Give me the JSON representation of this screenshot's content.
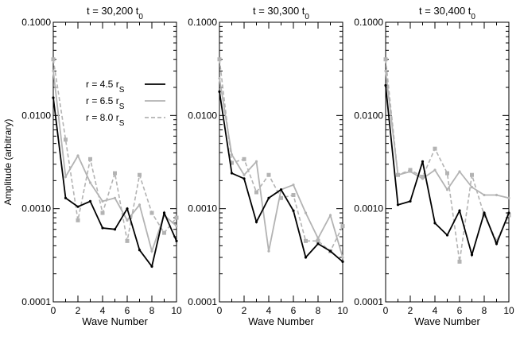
{
  "chart_data": {
    "type": "line",
    "ylabel": "Amplitude (arbitrary)",
    "xlabel": "Wave Number",
    "yscale": "log",
    "ylim": [
      0.0001,
      0.1
    ],
    "xlim": [
      0,
      10
    ],
    "xticks": [
      "0",
      "2",
      "4",
      "6",
      "8",
      "10"
    ],
    "yticks": [
      "0.1000",
      "0.0100",
      "0.0010",
      "0.0001"
    ],
    "legend": [
      {
        "label": "r = 4.5 r",
        "sub": "S",
        "series": 0
      },
      {
        "label": "r = 6.5 r",
        "sub": "S",
        "series": 1
      },
      {
        "label": "r = 8.0 r",
        "sub": "S",
        "series": 2
      }
    ],
    "panels": [
      {
        "title": "t = 30,200 t",
        "title_sub": "0",
        "series": [
          {
            "name": "r = 4.5 rS",
            "color": "#000000",
            "style": "solid",
            "values": [
              0.0155,
              0.0013,
              0.00105,
              0.0012,
              0.00062,
              0.0006,
              0.001,
              0.00036,
              0.00024,
              0.0009,
              0.00045
            ]
          },
          {
            "name": "r = 6.5 rS",
            "color": "#b3b3b3",
            "style": "solid",
            "values": [
              0.03,
              0.0022,
              0.0037,
              0.0019,
              0.0012,
              0.0013,
              0.00075,
              0.0011,
              0.00035,
              0.00085,
              0.00065
            ]
          },
          {
            "name": "r = 8.0 rS",
            "color": "#b3b3b3",
            "style": "dashed",
            "values": [
              0.04,
              0.0055,
              0.00075,
              0.0034,
              0.0009,
              0.0024,
              0.00045,
              0.0023,
              0.0009,
              0.00055,
              0.0008
            ]
          }
        ]
      },
      {
        "title": "t = 30,300 t",
        "title_sub": "0",
        "series": [
          {
            "name": "r = 4.5 rS",
            "color": "#000000",
            "style": "solid",
            "values": [
              0.018,
              0.0024,
              0.0021,
              0.00072,
              0.0013,
              0.0016,
              0.00095,
              0.0003,
              0.00042,
              0.00035,
              0.00027
            ]
          },
          {
            "name": "r = 6.5 rS",
            "color": "#b3b3b3",
            "style": "solid",
            "values": [
              0.025,
              0.0038,
              0.0023,
              0.0032,
              0.00035,
              0.0016,
              0.0018,
              0.0009,
              0.00048,
              0.00085,
              0.0003
            ]
          },
          {
            "name": "r = 8.0 rS",
            "color": "#b3b3b3",
            "style": "dashed",
            "values": [
              0.04,
              0.0031,
              0.0034,
              0.0015,
              0.0023,
              0.0013,
              0.0014,
              0.00045,
              0.00045,
              0.00035,
              0.00065
            ]
          }
        ]
      },
      {
        "title": "t = 30,400 t",
        "title_sub": "0",
        "series": [
          {
            "name": "r = 4.5 rS",
            "color": "#000000",
            "style": "solid",
            "values": [
              0.021,
              0.0011,
              0.0012,
              0.0032,
              0.0007,
              0.00052,
              0.00095,
              0.00032,
              0.0009,
              0.00042,
              0.0009
            ]
          },
          {
            "name": "r = 6.5 rS",
            "color": "#b3b3b3",
            "style": "solid",
            "values": [
              0.03,
              0.0023,
              0.0025,
              0.0021,
              0.0026,
              0.0016,
              0.0025,
              0.0017,
              0.0014,
              0.0014,
              0.0013
            ]
          },
          {
            "name": "r = 8.0 rS",
            "color": "#b3b3b3",
            "style": "dashed",
            "values": [
              0.04,
              0.0023,
              0.0026,
              0.0022,
              0.0044,
              0.0024,
              0.00027,
              0.0023,
              0.00085,
              0.00045,
              0.00085
            ]
          }
        ]
      }
    ]
  }
}
